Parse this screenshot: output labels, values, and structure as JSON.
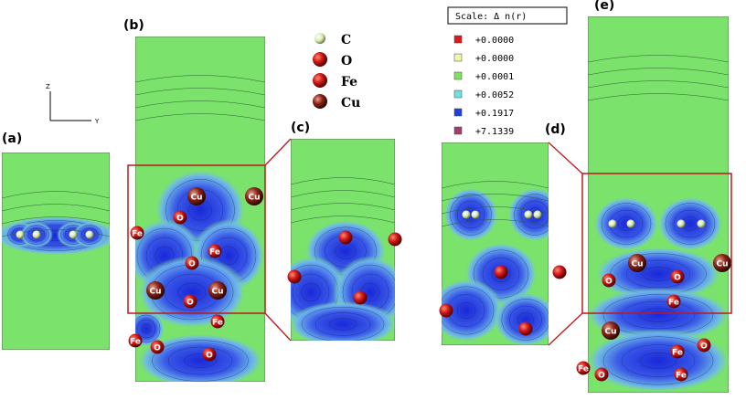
{
  "axes": {
    "z": "Z",
    "y": "Y"
  },
  "legend": [
    {
      "label": "C"
    },
    {
      "label": "O"
    },
    {
      "label": "Fe"
    },
    {
      "label": "Cu"
    }
  ],
  "scale": {
    "title": "Scale:  Δ n(r)",
    "entries": [
      "+0.0000",
      "+0.0000",
      "+0.0001",
      "+0.0052",
      "+0.1917",
      "+7.1339"
    ]
  },
  "panels": [
    {
      "label": "(a)",
      "atoms": []
    },
    {
      "label": "(b)",
      "atoms": [
        "Cu",
        "Cu",
        "O",
        "Fe",
        "Fe",
        "O",
        "Cu",
        "Cu",
        "O",
        "Fe",
        "Fe",
        "O",
        "O"
      ]
    },
    {
      "label": "(c)",
      "atoms": []
    },
    {
      "label": "(d)",
      "atoms": []
    },
    {
      "label": "(e)",
      "atoms": [
        "Cu",
        "Cu",
        "O",
        "Fe",
        "O",
        "Cu",
        "Fe",
        "O",
        "Fe",
        "O",
        "Fe"
      ]
    }
  ]
}
